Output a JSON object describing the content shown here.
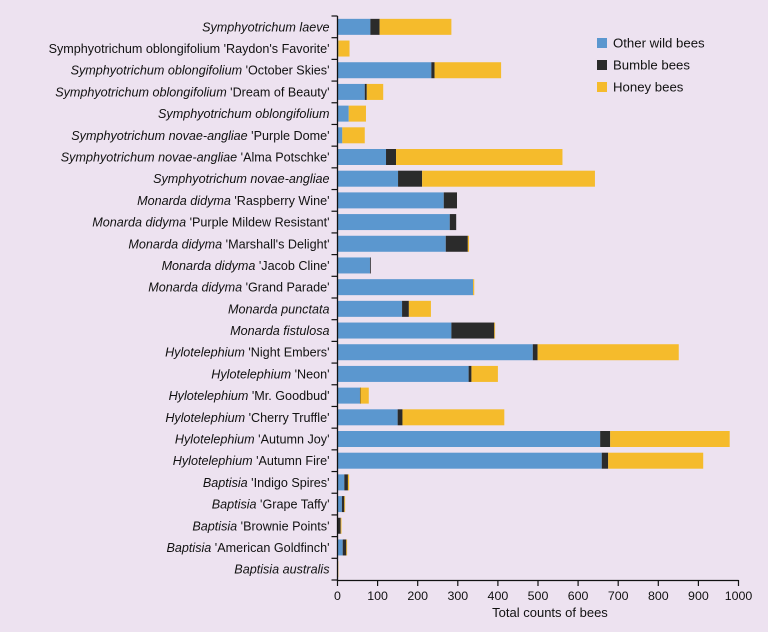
{
  "chart_data": {
    "type": "bar",
    "orientation": "horizontal",
    "stacked": true,
    "title": "",
    "xlabel": "Total counts of bees",
    "ylabel": "",
    "xlim": [
      0,
      1000
    ],
    "xticks": [
      0,
      100,
      200,
      300,
      400,
      500,
      600,
      700,
      800,
      900,
      1000
    ],
    "grid": false,
    "legend_position": "top-right",
    "categories": [
      {
        "italic": "Symphyotrichum laeve",
        "plain": ""
      },
      {
        "italic": "",
        "plain": "Symphyotrichum oblongifolium 'Raydon's Favorite'"
      },
      {
        "italic": "Symphyotrichum oblongifolium",
        "plain": " 'October Skies'"
      },
      {
        "italic": "Symphyotrichum oblongifolium",
        "plain": " 'Dream of Beauty'"
      },
      {
        "italic": "Symphyotrichum oblongifolium",
        "plain": ""
      },
      {
        "italic": "Symphyotrichum novae-angliae",
        "plain": " 'Purple Dome'"
      },
      {
        "italic": "Symphyotrichum novae-angliae",
        "plain": " 'Alma Potschke'"
      },
      {
        "italic": "Symphyotrichum novae-angliae",
        "plain": ""
      },
      {
        "italic": "Monarda didyma",
        "plain": " 'Raspberry Wine'"
      },
      {
        "italic": "Monarda didyma",
        "plain": " 'Purple Mildew Resistant'"
      },
      {
        "italic": "Monarda didyma",
        "plain": " 'Marshall's Delight'"
      },
      {
        "italic": "Monarda didyma",
        "plain": " 'Jacob Cline'"
      },
      {
        "italic": "Monarda didyma",
        "plain": " 'Grand Parade'"
      },
      {
        "italic": "Monarda punctata",
        "plain": ""
      },
      {
        "italic": "Monarda fistulosa",
        "plain": ""
      },
      {
        "italic": "Hylotelephium",
        "plain": " 'Night Embers'"
      },
      {
        "italic": "Hylotelephium",
        "plain": " 'Neon'"
      },
      {
        "italic": "Hylotelephium",
        "plain": " 'Mr. Goodbud'"
      },
      {
        "italic": "Hylotelephium",
        "plain": " 'Cherry Truffle'"
      },
      {
        "italic": "Hylotelephium",
        "plain": " 'Autumn Joy'"
      },
      {
        "italic": "Hylotelephium",
        "plain": " 'Autumn Fire'"
      },
      {
        "italic": "Baptisia",
        "plain": " 'Indigo Spires'"
      },
      {
        "italic": "Baptisia",
        "plain": " 'Grape Taffy'"
      },
      {
        "italic": "Baptisia",
        "plain": " 'Brownie Points'"
      },
      {
        "italic": "Baptisia",
        "plain": " 'American Goldfinch'"
      },
      {
        "italic": "Baptisia australis",
        "plain": ""
      }
    ],
    "series": [
      {
        "name": "Other wild bees",
        "color": "#5b97cf",
        "values": [
          82,
          2,
          234,
          68,
          28,
          12,
          121,
          151,
          265,
          280,
          270,
          81,
          338,
          161,
          284,
          487,
          327,
          56,
          150,
          655,
          659,
          17,
          11,
          1,
          13,
          0
        ]
      },
      {
        "name": "Bumble bees",
        "color": "#2b2b2b",
        "values": [
          23,
          0,
          8,
          5,
          0,
          0,
          25,
          60,
          33,
          16,
          55,
          2,
          0,
          17,
          107,
          12,
          7,
          1,
          12,
          25,
          16,
          9,
          6,
          7,
          9,
          0
        ]
      },
      {
        "name": "Honey bees",
        "color": "#f5bb2c",
        "values": [
          179,
          28,
          166,
          41,
          43,
          56,
          415,
          431,
          0,
          0,
          3,
          0,
          3,
          55,
          2,
          352,
          66,
          21,
          254,
          298,
          237,
          3,
          1,
          1,
          2,
          2
        ]
      }
    ]
  }
}
